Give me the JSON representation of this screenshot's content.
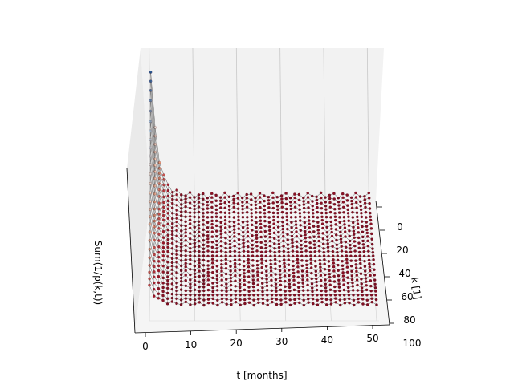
{
  "chart_data": {
    "type": "surface3d",
    "title": "",
    "xlabel": "t [months]",
    "ylabel": "k [1]",
    "zlabel": "Sum(1/p(k,t))",
    "x_ticks": [
      "0",
      "10",
      "20",
      "30",
      "40",
      "50"
    ],
    "y_ticks": [
      "0",
      "20",
      "40",
      "60",
      "80",
      "100"
    ],
    "xlim": [
      0,
      50
    ],
    "ylim": [
      0,
      100
    ],
    "grid": true,
    "colormap": "RdBu",
    "color_high": "#2c5e9c",
    "color_mid": "#f2b18f",
    "color_low": "#6b0b1f",
    "profile_description": "surface peaks sharply near t=0, k=0 and decays quickly to a flat level as t increases",
    "t_samples": [
      0,
      1,
      2,
      3,
      4,
      6,
      8,
      10,
      15,
      20,
      30,
      40,
      50
    ],
    "z_samples_at_k0": [
      1.0,
      0.62,
      0.4,
      0.28,
      0.2,
      0.12,
      0.08,
      0.06,
      0.05,
      0.045,
      0.04,
      0.04,
      0.04
    ]
  }
}
